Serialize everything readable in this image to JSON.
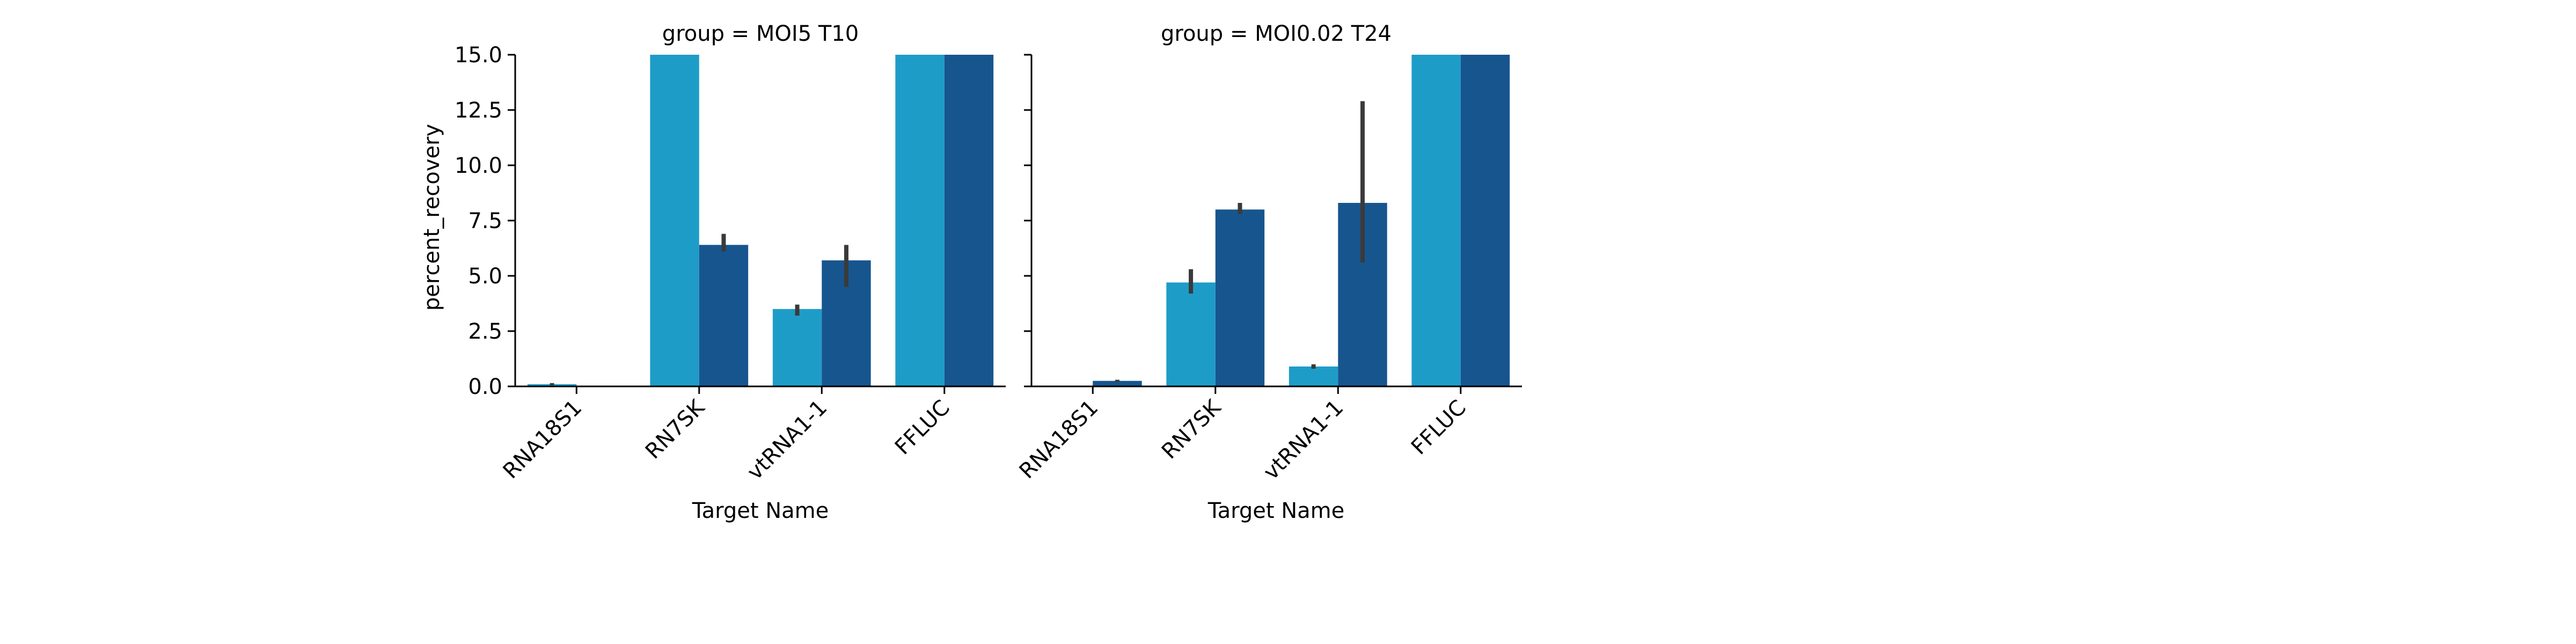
{
  "chart_data": [
    {
      "type": "bar",
      "title": "group = MOI5 T10",
      "xlabel": "Target Name",
      "ylabel": "percent_recovery",
      "ylim": [
        0,
        15
      ],
      "yticks": [
        "0.0",
        "2.5",
        "5.0",
        "7.5",
        "10.0",
        "12.5",
        "15.0"
      ],
      "categories": [
        "RNA18S1",
        "RN7SK",
        "vtRNA1-1",
        "FFLUC"
      ],
      "series": [
        {
          "values": [
            0.1,
            15.0,
            3.5,
            15.0
          ],
          "err_low": [
            0.05,
            null,
            3.2,
            null
          ],
          "err_high": [
            0.15,
            null,
            3.7,
            null
          ],
          "color": "#1e9cc8"
        },
        {
          "values": [
            0.0,
            6.4,
            5.7,
            15.0
          ],
          "err_low": [
            null,
            6.1,
            4.5,
            null
          ],
          "err_high": [
            null,
            6.9,
            6.4,
            null
          ],
          "color": "#17558f"
        }
      ],
      "legend": "none",
      "grid": false
    },
    {
      "type": "bar",
      "title": "group = MOI0.02 T24",
      "xlabel": "Target Name",
      "ylabel": "",
      "ylim": [
        0,
        15
      ],
      "yticks": [],
      "categories": [
        "RNA18S1",
        "RN7SK",
        "vtRNA1-1",
        "FFLUC"
      ],
      "series": [
        {
          "values": [
            0.0,
            4.7,
            0.9,
            15.0
          ],
          "err_low": [
            null,
            4.2,
            0.8,
            null
          ],
          "err_high": [
            null,
            5.3,
            1.0,
            null
          ],
          "color": "#1e9cc8"
        },
        {
          "values": [
            0.25,
            8.0,
            8.3,
            15.0
          ],
          "err_low": [
            0.2,
            7.8,
            5.6,
            null
          ],
          "err_high": [
            0.3,
            8.3,
            12.9,
            null
          ],
          "color": "#17558f"
        }
      ],
      "legend": "none",
      "grid": false
    }
  ]
}
